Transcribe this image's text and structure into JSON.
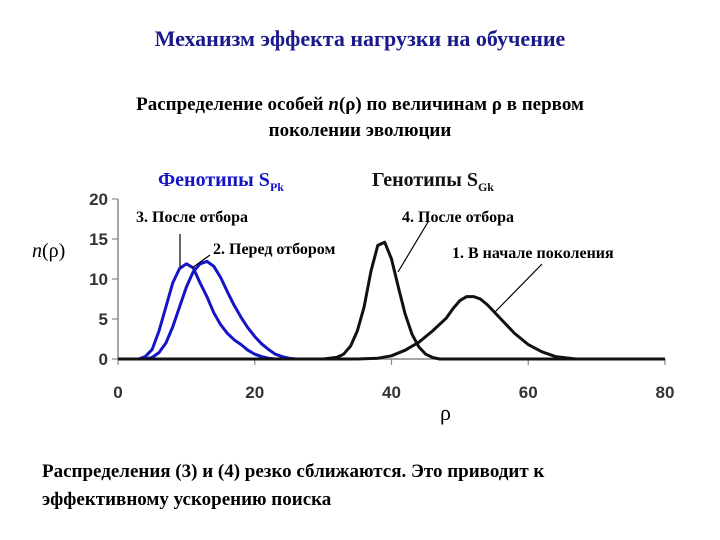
{
  "title": "Механизм эффекта нагрузки на обучение",
  "subtitle": {
    "before": "Распределение особей ",
    "func": "n",
    "mid": "(ρ) по величинам  ρ в первом",
    "line2": "поколении эволюции"
  },
  "bottom_text": {
    "line1": "Распределения (3) и (4) резко сближаются. Это приводит к",
    "line2": "эффективному ускорению поиска"
  },
  "colors": {
    "title": "#1a1a8c",
    "phenotype": "#1515c8",
    "genotype": "#111111",
    "axis": "#888888"
  },
  "chart_data": {
    "type": "line",
    "title": "",
    "xlabel": "ρ",
    "ylabel": "n(ρ)",
    "xlim": [
      0,
      80
    ],
    "ylim": [
      0,
      20
    ],
    "x_ticks": [
      "0",
      "20",
      "40",
      "60",
      "80"
    ],
    "y_ticks": [
      "0",
      "5",
      "10",
      "15",
      "20"
    ],
    "grid": false,
    "group_labels": [
      {
        "main": "Фенотипы S",
        "sub": "Pk",
        "color": "#1515c8"
      },
      {
        "main": "Генотипы S",
        "sub": "Gk",
        "color": "#111111"
      }
    ],
    "series": [
      {
        "name": "3. После отбора",
        "group": "phenotype",
        "points": [
          [
            0,
            0
          ],
          [
            3,
            0
          ],
          [
            4,
            0.3
          ],
          [
            5,
            1.2
          ],
          [
            6,
            3.5
          ],
          [
            7,
            6.5
          ],
          [
            8,
            9.5
          ],
          [
            9,
            11.3
          ],
          [
            10,
            11.9
          ],
          [
            11,
            11.4
          ],
          [
            12,
            9.5
          ],
          [
            13,
            7.8
          ],
          [
            14,
            5.8
          ],
          [
            15,
            4.3
          ],
          [
            16,
            3.2
          ],
          [
            17,
            2.4
          ],
          [
            18,
            1.8
          ],
          [
            19,
            1.1
          ],
          [
            20,
            0.6
          ],
          [
            21,
            0.3
          ],
          [
            22,
            0.1
          ],
          [
            23,
            0
          ],
          [
            25,
            0
          ]
        ]
      },
      {
        "name": "2. Перед отбором",
        "group": "phenotype",
        "points": [
          [
            0,
            0
          ],
          [
            4,
            0
          ],
          [
            5,
            0.2
          ],
          [
            6,
            0.8
          ],
          [
            7,
            2.0
          ],
          [
            8,
            4.0
          ],
          [
            9,
            6.5
          ],
          [
            10,
            9.0
          ],
          [
            11,
            10.9
          ],
          [
            12,
            11.9
          ],
          [
            13,
            12.2
          ],
          [
            14,
            11.6
          ],
          [
            15,
            10.2
          ],
          [
            16,
            8.4
          ],
          [
            17,
            6.7
          ],
          [
            18,
            5.2
          ],
          [
            19,
            3.9
          ],
          [
            20,
            2.8
          ],
          [
            21,
            1.9
          ],
          [
            22,
            1.2
          ],
          [
            23,
            0.6
          ],
          [
            24,
            0.3
          ],
          [
            25,
            0.1
          ],
          [
            26,
            0
          ],
          [
            28,
            0
          ]
        ]
      },
      {
        "name": "4. После отбора",
        "group": "genotype",
        "points": [
          [
            0,
            0
          ],
          [
            30,
            0
          ],
          [
            32,
            0.2
          ],
          [
            33,
            0.6
          ],
          [
            34,
            1.6
          ],
          [
            35,
            3.5
          ],
          [
            36,
            6.5
          ],
          [
            37,
            11.0
          ],
          [
            38,
            14.2
          ],
          [
            39,
            14.6
          ],
          [
            40,
            12.5
          ],
          [
            41,
            9.0
          ],
          [
            42,
            5.6
          ],
          [
            43,
            3.1
          ],
          [
            44,
            1.5
          ],
          [
            45,
            0.6
          ],
          [
            46,
            0.2
          ],
          [
            47,
            0
          ],
          [
            80,
            0
          ]
        ]
      },
      {
        "name": "1. В начале поколения",
        "group": "genotype",
        "points": [
          [
            0,
            0
          ],
          [
            35,
            0
          ],
          [
            38,
            0.1
          ],
          [
            40,
            0.4
          ],
          [
            42,
            1.1
          ],
          [
            44,
            2.1
          ],
          [
            46,
            3.5
          ],
          [
            48,
            5.1
          ],
          [
            49,
            6.3
          ],
          [
            50,
            7.3
          ],
          [
            51,
            7.8
          ],
          [
            52,
            7.8
          ],
          [
            53,
            7.5
          ],
          [
            54,
            6.8
          ],
          [
            56,
            5.0
          ],
          [
            58,
            3.2
          ],
          [
            60,
            1.8
          ],
          [
            62,
            0.9
          ],
          [
            64,
            0.3
          ],
          [
            66,
            0.1
          ],
          [
            67,
            0
          ],
          [
            80,
            0
          ]
        ]
      }
    ]
  }
}
